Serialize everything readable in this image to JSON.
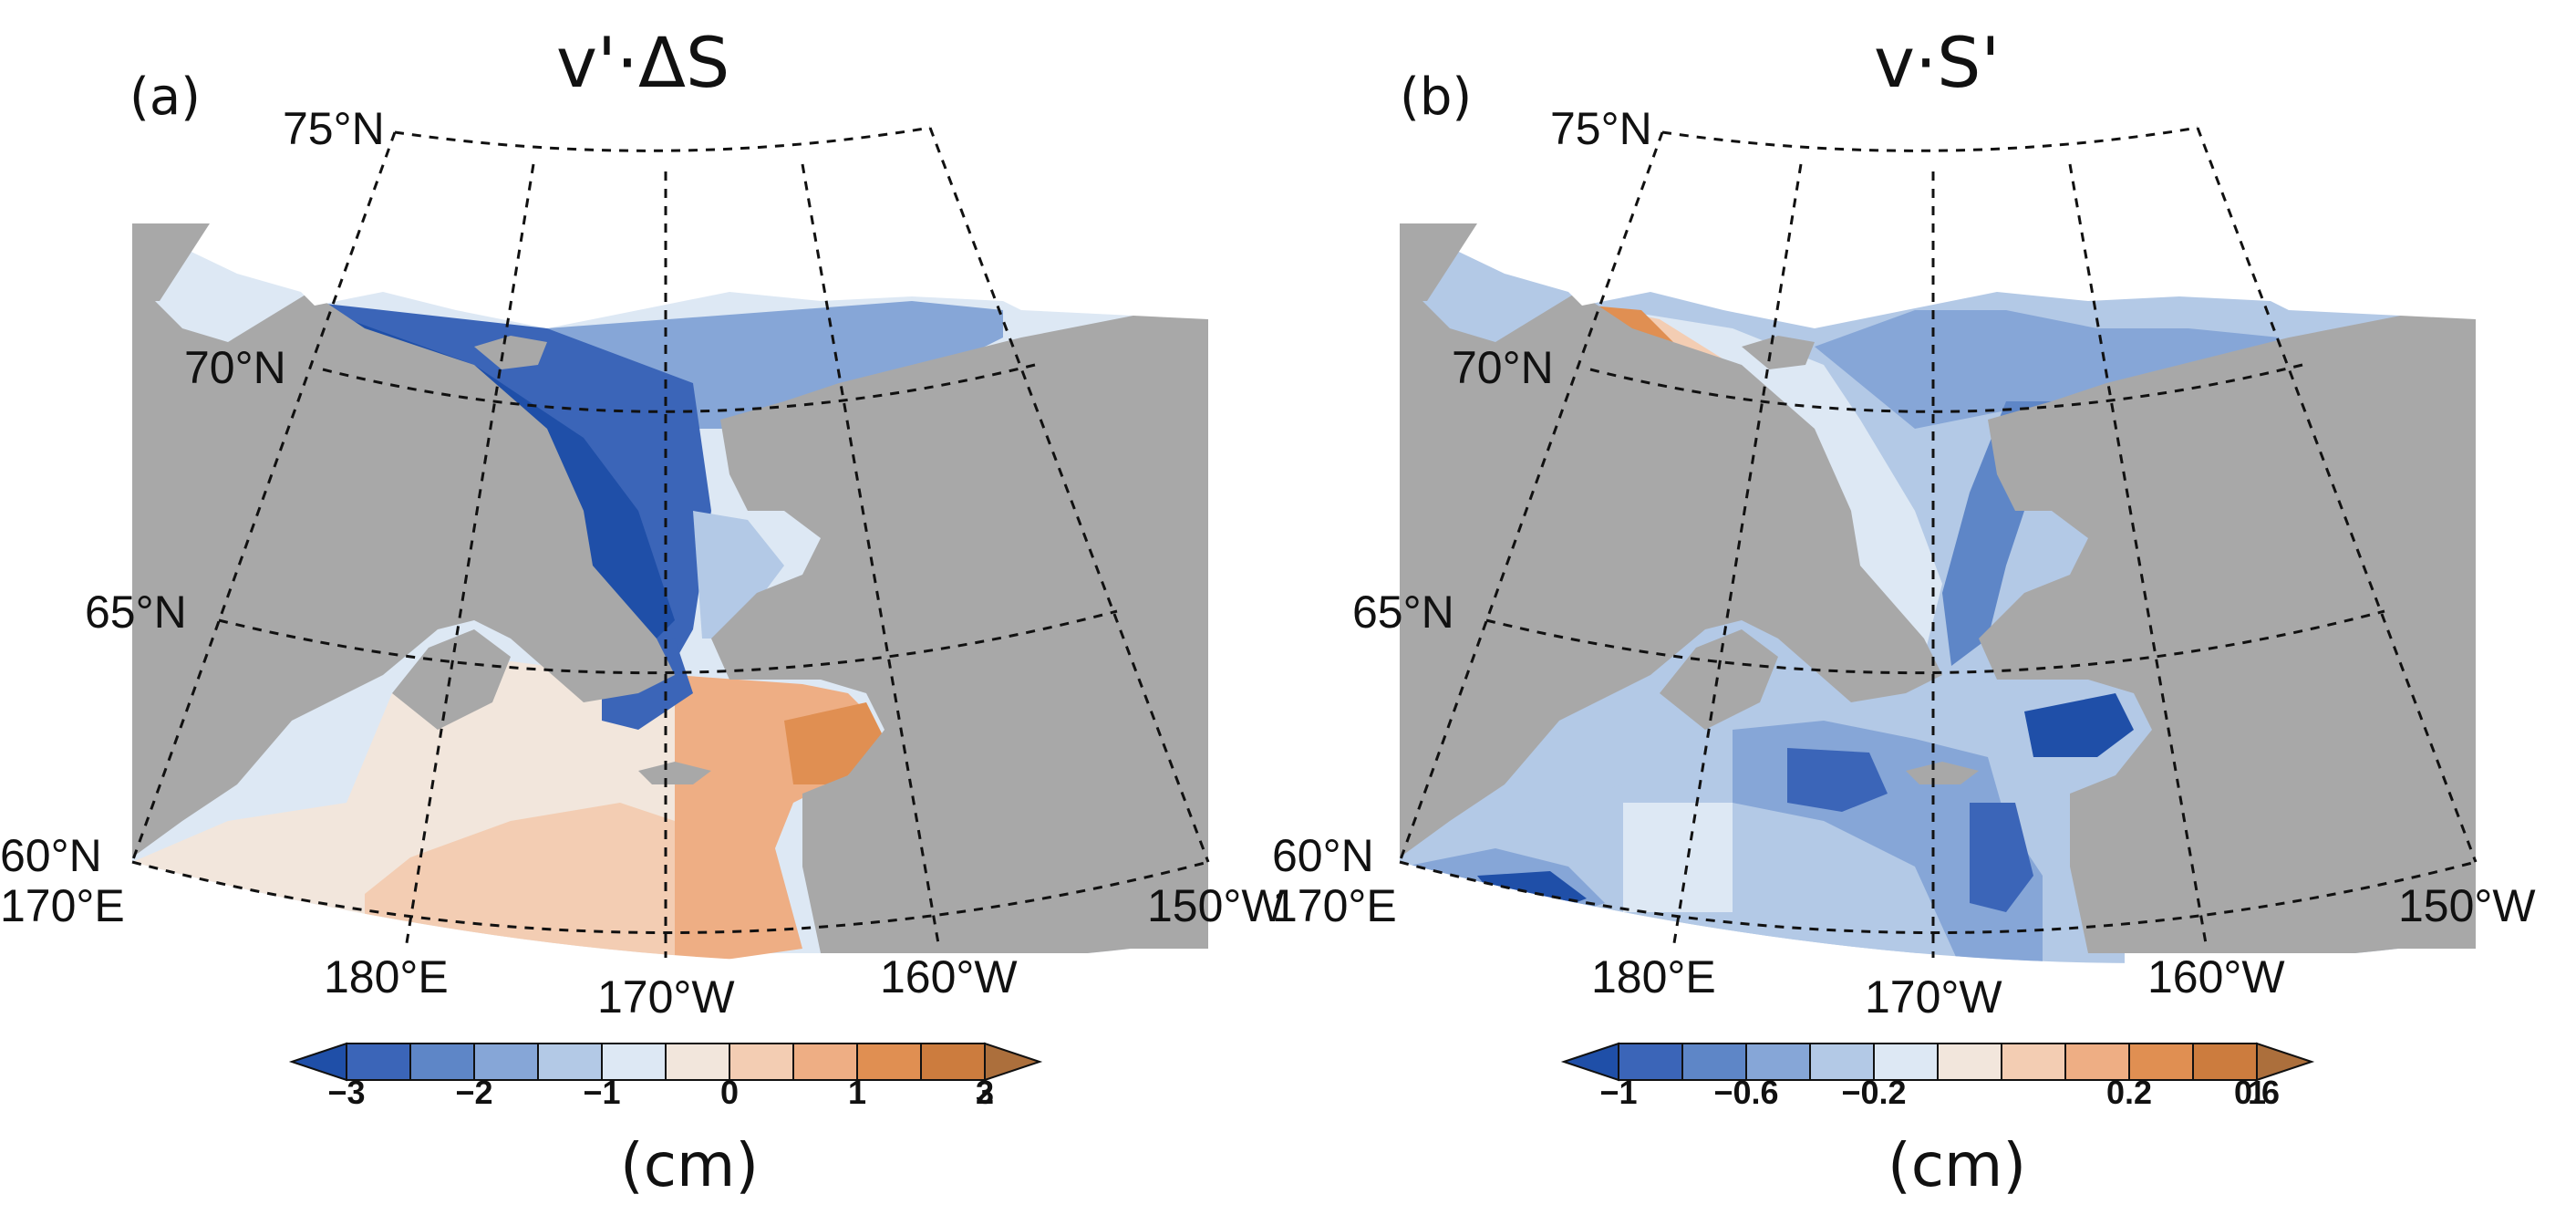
{
  "panels": [
    {
      "panel_label": "(a)",
      "title": "v'·ΔS",
      "lat_labels": [
        "75°N",
        "70°N",
        "65°N",
        "60°N"
      ],
      "lon_labels": [
        "170°E",
        "180°E",
        "170°W",
        "160°W",
        "150°W"
      ],
      "colorbar": {
        "ticks": [
          "−3",
          "−2",
          "−1",
          "0",
          "1",
          "2",
          "3"
        ],
        "unit": "(cm)",
        "colors": [
          "#1f4fa8",
          "#3b65b8",
          "#5e86c7",
          "#86a6d7",
          "#b3c9e6",
          "#dde8f4",
          "#f2e6dc",
          "#f3cdb3",
          "#eeae84",
          "#e08f52",
          "#cc7c3e",
          "#ac6f3c"
        ],
        "range": [
          -3,
          3
        ]
      }
    },
    {
      "panel_label": "(b)",
      "title": "v·S'",
      "lat_labels": [
        "75°N",
        "70°N",
        "65°N",
        "60°N"
      ],
      "lon_labels": [
        "170°E",
        "180°E",
        "170°W",
        "160°W",
        "150°W"
      ],
      "colorbar": {
        "ticks": [
          "−1",
          "−0.6",
          "−0.2",
          "0.2",
          "0.6",
          "1"
        ],
        "unit": "(cm)",
        "colors": [
          "#1f4fa8",
          "#3b65b8",
          "#5e86c7",
          "#86a6d7",
          "#b3c9e6",
          "#dde8f4",
          "#f2e6dc",
          "#f3cdb3",
          "#eeae84",
          "#e08f52",
          "#cc7c3e",
          "#ac6f3c"
        ],
        "range": [
          -1,
          1
        ]
      }
    }
  ],
  "colors": {
    "land": "#a8a8a8",
    "strong_negative": "#1f4fa8",
    "near_zero": "#dde8f4",
    "positive": "#eeae84"
  }
}
